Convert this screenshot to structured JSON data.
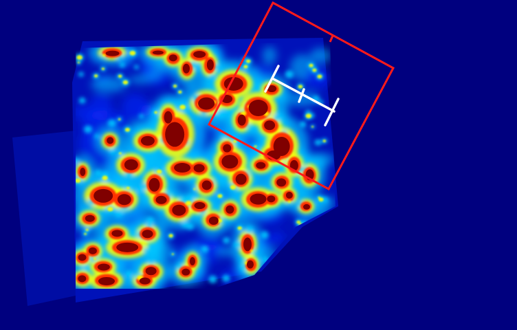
{
  "image": {
    "description_colors": {
      "background": "#00007f",
      "low": "#0a2cff",
      "mid": "#00c8ff",
      "high_mid": "#ffff00",
      "hot": "#ff3000",
      "peak": "#800000",
      "frame_outline": "#ff1a1a",
      "scale_marker": "#ffffff"
    },
    "colormap": "jet",
    "overlay": {
      "frame_outline_icon": "rotated-square-outline",
      "scale_marker_icon": "h-shaped-scale-bar"
    }
  }
}
